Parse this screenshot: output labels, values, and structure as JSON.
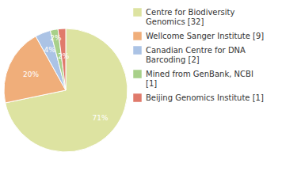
{
  "chart_data": {
    "type": "pie",
    "categories": [
      "Centre for Biodiversity Genomics [32]",
      "Wellcome Sanger Institute [9]",
      "Canadian Centre for DNA Barcoding [2]",
      "Mined from GenBank, NCBI [1]",
      "Beijing Genomics Institute [1]"
    ],
    "values": [
      71,
      20,
      4,
      2,
      2
    ],
    "value_labels": [
      "71%",
      "20%",
      "4%",
      "2%",
      "2%"
    ],
    "colors": [
      "#dde3a1",
      "#f0ae7a",
      "#abc3e5",
      "#a8d08a",
      "#e07a6b"
    ],
    "data_labels": true,
    "legend": "top-right"
  }
}
